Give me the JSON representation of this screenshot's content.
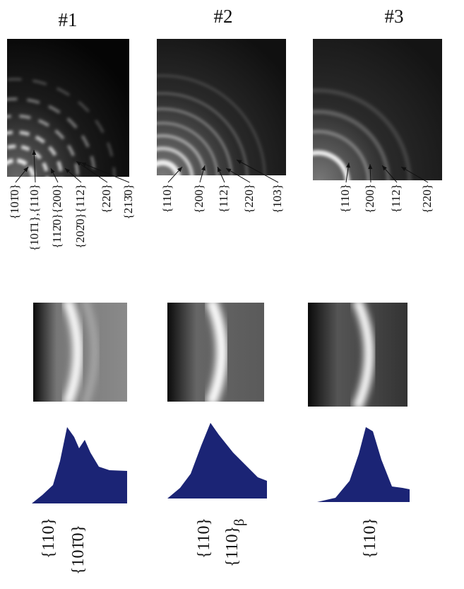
{
  "columns": [
    {
      "title": "#1",
      "pattern_labels": [
        "{101̄0}",
        "{101̄1},{110}",
        "{112̄0}{200}",
        "{202̄0}{112}",
        "{220}",
        "{213̄0}"
      ],
      "profile_labels": [
        {
          "text": "{110}"
        },
        {
          "text": "{101̄0}"
        }
      ]
    },
    {
      "title": "#2",
      "pattern_labels": [
        "{110}",
        "{200}",
        "{112}",
        "{220}",
        "{103}"
      ],
      "profile_labels": [
        {
          "text": "{110}"
        },
        {
          "text": "{110}",
          "subscript": "β"
        }
      ]
    },
    {
      "title": "#3",
      "pattern_labels": [
        "{110}",
        "{200}",
        "{112}",
        "{220}"
      ],
      "profile_labels": [
        {
          "text": "{110}"
        }
      ]
    }
  ]
}
